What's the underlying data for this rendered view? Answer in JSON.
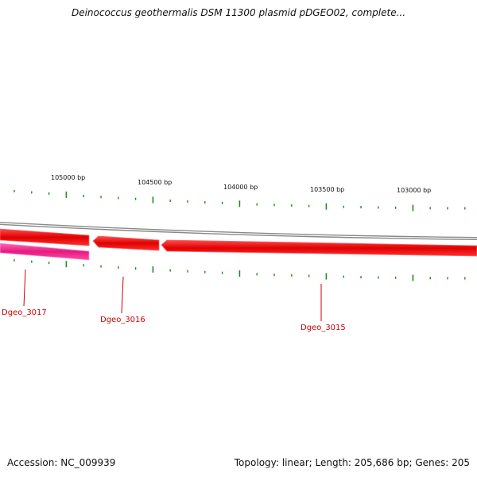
{
  "title": "Deinococcus geothermalis DSM 11300 plasmid pDGEO02, complete...",
  "scale_labels": [
    "105000 bp",
    "104500 bp",
    "104000 bp",
    "103500 bp",
    "103000 bp"
  ],
  "genes": [
    {
      "name": "Dgeo_3017",
      "strand": "reverse-lower",
      "color": "#ff3399"
    },
    {
      "name": "Dgeo_3016",
      "strand": "reverse",
      "color": "#ff0000"
    },
    {
      "name": "Dgeo_3015",
      "strand": "reverse",
      "color": "#ff0000"
    }
  ],
  "colors": {
    "backbone": "#888888",
    "gene_red": "#ff0000",
    "gene_pink": "#ff3399",
    "tick": "#228b22",
    "label_red": "#cc0000"
  },
  "footer": {
    "accession": "Accession: NC_009939",
    "summary": "Topology: linear; Length: 205,686 bp; Genes: 205"
  }
}
